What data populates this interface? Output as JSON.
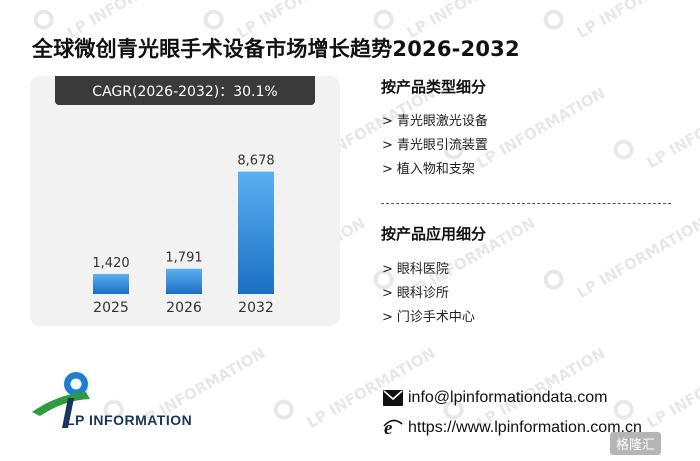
{
  "title": "全球微创青光眼手术设备市场增长趋势2026-2032",
  "cagr": "CAGR(2026-2032)：30.1%",
  "watermark_text": "LP INFORMATION",
  "chart_data": {
    "type": "bar",
    "categories": [
      "2025",
      "2026",
      "2032"
    ],
    "values": [
      1420,
      1791,
      8678
    ],
    "value_labels": [
      "1,420",
      "1,791",
      "8,678"
    ],
    "title": "",
    "xlabel": "",
    "ylabel": "",
    "ylim": [
      0,
      10000
    ],
    "grid": false,
    "legend": "none",
    "bar_color_top": "#5ab0f0",
    "bar_color_bottom": "#1a6fc4"
  },
  "segments": {
    "by_type": {
      "title": "按产品类型细分",
      "items": [
        "青光眼激光设备",
        "青光眼引流装置",
        "植入物和支架"
      ]
    },
    "by_application": {
      "title": "按产品应用细分",
      "items": [
        "眼科医院",
        "眼科诊所",
        "门诊手术中心"
      ]
    },
    "arrow": ">"
  },
  "logo": {
    "text": "LP INFORMATION",
    "colors": {
      "green": "#2e9b3e",
      "blue": "#1e7fd0",
      "navy": "#17365e"
    }
  },
  "contact": {
    "email": "info@lpinformationdata.com",
    "website": "https://www.lpinformation.com.cn",
    "email_icon": "envelope-icon",
    "web_icon": "browser-e-icon"
  },
  "corner_badge": "格隆汇"
}
